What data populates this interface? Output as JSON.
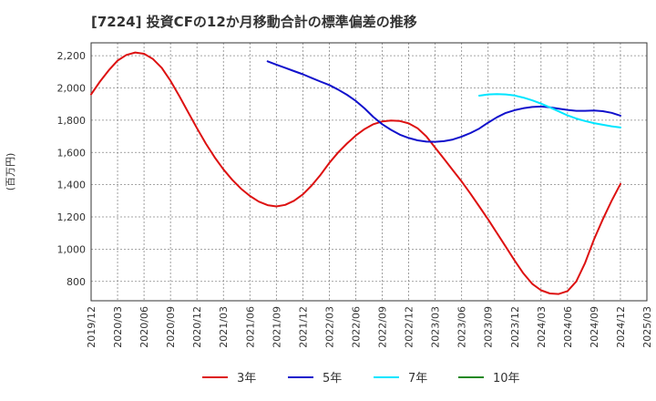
{
  "chart_data": {
    "type": "line",
    "title": "[7224]  投資CFの12か月移動合計の標準偏差の推移",
    "ylabel": "(百万円)",
    "xlabel": "",
    "ylim": [
      680,
      2280
    ],
    "y_ticks": [
      800,
      1000,
      1200,
      1400,
      1600,
      1800,
      2000,
      2200
    ],
    "y_tick_labels": [
      "800",
      "1,000",
      "1,200",
      "1,400",
      "1,600",
      "1,800",
      "2,000",
      "2,200"
    ],
    "x_tick_labels": [
      "2019/12",
      "2020/03",
      "2020/06",
      "2020/09",
      "2020/12",
      "2021/03",
      "2021/06",
      "2021/09",
      "2021/12",
      "2022/03",
      "2022/06",
      "2022/09",
      "2022/12",
      "2023/03",
      "2023/06",
      "2023/09",
      "2023/12",
      "2024/03",
      "2024/06",
      "2024/09",
      "2024/12",
      "2025/03"
    ],
    "grid": true,
    "legend_position": "bottom",
    "series": [
      {
        "name": "3年",
        "color": "#dd1111",
        "points": [
          [
            "2019/12",
            1960
          ],
          [
            "2020/01",
            2040
          ],
          [
            "2020/02",
            2110
          ],
          [
            "2020/03",
            2170
          ],
          [
            "2020/04",
            2205
          ],
          [
            "2020/05",
            2220
          ],
          [
            "2020/06",
            2212
          ],
          [
            "2020/07",
            2180
          ],
          [
            "2020/08",
            2125
          ],
          [
            "2020/09",
            2045
          ],
          [
            "2020/10",
            1950
          ],
          [
            "2020/11",
            1850
          ],
          [
            "2020/12",
            1750
          ],
          [
            "2021/01",
            1655
          ],
          [
            "2021/02",
            1570
          ],
          [
            "2021/03",
            1495
          ],
          [
            "2021/04",
            1430
          ],
          [
            "2021/05",
            1375
          ],
          [
            "2021/06",
            1330
          ],
          [
            "2021/07",
            1295
          ],
          [
            "2021/08",
            1273
          ],
          [
            "2021/09",
            1265
          ],
          [
            "2021/10",
            1275
          ],
          [
            "2021/11",
            1300
          ],
          [
            "2021/12",
            1340
          ],
          [
            "2022/01",
            1395
          ],
          [
            "2022/02",
            1460
          ],
          [
            "2022/03",
            1535
          ],
          [
            "2022/04",
            1600
          ],
          [
            "2022/05",
            1655
          ],
          [
            "2022/06",
            1705
          ],
          [
            "2022/07",
            1745
          ],
          [
            "2022/08",
            1775
          ],
          [
            "2022/09",
            1792
          ],
          [
            "2022/10",
            1798
          ],
          [
            "2022/11",
            1795
          ],
          [
            "2022/12",
            1780
          ],
          [
            "2023/01",
            1750
          ],
          [
            "2023/02",
            1700
          ],
          [
            "2023/03",
            1630
          ],
          [
            "2023/04",
            1560
          ],
          [
            "2023/05",
            1490
          ],
          [
            "2023/06",
            1420
          ],
          [
            "2023/07",
            1345
          ],
          [
            "2023/08",
            1265
          ],
          [
            "2023/09",
            1185
          ],
          [
            "2023/10",
            1100
          ],
          [
            "2023/11",
            1015
          ],
          [
            "2023/12",
            930
          ],
          [
            "2024/01",
            850
          ],
          [
            "2024/02",
            785
          ],
          [
            "2024/03",
            745
          ],
          [
            "2024/04",
            725
          ],
          [
            "2024/05",
            722
          ],
          [
            "2024/06",
            740
          ],
          [
            "2024/07",
            800
          ],
          [
            "2024/08",
            915
          ],
          [
            "2024/09",
            1060
          ],
          [
            "2024/10",
            1185
          ],
          [
            "2024/11",
            1300
          ],
          [
            "2024/12",
            1405
          ]
        ]
      },
      {
        "name": "5年",
        "color": "#1111cc",
        "points": [
          [
            "2021/08",
            2165
          ],
          [
            "2021/09",
            2145
          ],
          [
            "2021/10",
            2125
          ],
          [
            "2021/11",
            2105
          ],
          [
            "2021/12",
            2085
          ],
          [
            "2022/01",
            2062
          ],
          [
            "2022/02",
            2040
          ],
          [
            "2022/03",
            2018
          ],
          [
            "2022/04",
            1990
          ],
          [
            "2022/05",
            1958
          ],
          [
            "2022/06",
            1920
          ],
          [
            "2022/07",
            1873
          ],
          [
            "2022/08",
            1820
          ],
          [
            "2022/09",
            1775
          ],
          [
            "2022/10",
            1740
          ],
          [
            "2022/11",
            1710
          ],
          [
            "2022/12",
            1690
          ],
          [
            "2023/01",
            1675
          ],
          [
            "2023/02",
            1667
          ],
          [
            "2023/03",
            1666
          ],
          [
            "2023/04",
            1670
          ],
          [
            "2023/05",
            1680
          ],
          [
            "2023/06",
            1698
          ],
          [
            "2023/07",
            1720
          ],
          [
            "2023/08",
            1748
          ],
          [
            "2023/09",
            1785
          ],
          [
            "2023/10",
            1818
          ],
          [
            "2023/11",
            1845
          ],
          [
            "2023/12",
            1862
          ],
          [
            "2024/01",
            1874
          ],
          [
            "2024/02",
            1882
          ],
          [
            "2024/03",
            1885
          ],
          [
            "2024/04",
            1880
          ],
          [
            "2024/05",
            1872
          ],
          [
            "2024/06",
            1864
          ],
          [
            "2024/07",
            1858
          ],
          [
            "2024/08",
            1858
          ],
          [
            "2024/09",
            1860
          ],
          [
            "2024/10",
            1856
          ],
          [
            "2024/11",
            1846
          ],
          [
            "2024/12",
            1828
          ]
        ]
      },
      {
        "name": "7年",
        "color": "#00e5ff",
        "points": [
          [
            "2023/08",
            1952
          ],
          [
            "2023/09",
            1960
          ],
          [
            "2023/10",
            1962
          ],
          [
            "2023/11",
            1960
          ],
          [
            "2023/12",
            1953
          ],
          [
            "2024/01",
            1940
          ],
          [
            "2024/02",
            1923
          ],
          [
            "2024/03",
            1903
          ],
          [
            "2024/04",
            1880
          ],
          [
            "2024/05",
            1855
          ],
          [
            "2024/06",
            1830
          ],
          [
            "2024/07",
            1810
          ],
          [
            "2024/08",
            1795
          ],
          [
            "2024/09",
            1782
          ],
          [
            "2024/10",
            1772
          ],
          [
            "2024/11",
            1762
          ],
          [
            "2024/12",
            1755
          ]
        ]
      },
      {
        "name": "10年",
        "color": "#228822",
        "points": []
      }
    ]
  }
}
